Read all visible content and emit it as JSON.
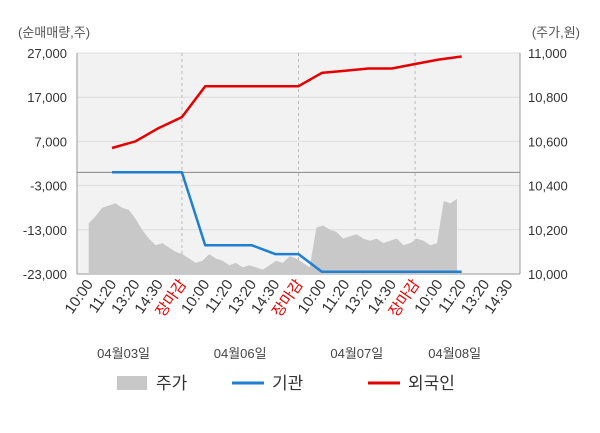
{
  "chart_data": {
    "type": "line",
    "y_left_unit": "(순매매량,주)",
    "y_right_unit": "(주가,원)",
    "y_left_ticks": [
      "27,000",
      "17,000",
      "7,000",
      "-3,000",
      "-13,000",
      "-23,000"
    ],
    "y_left_range": [
      -23000,
      27000
    ],
    "y_right_ticks": [
      "11,000",
      "10,800",
      "10,600",
      "10,400",
      "10,200",
      "10,000"
    ],
    "y_right_range": [
      10000,
      11000
    ],
    "x_tick_labels": [
      "10:00",
      "11:20",
      "13:20",
      "14:30",
      "장마감",
      "10:00",
      "11:20",
      "13:20",
      "14:30",
      "장마감",
      "10:00",
      "11:20",
      "13:20",
      "14:30",
      "장마감",
      "10:00",
      "11:20",
      "13:20",
      "14:30"
    ],
    "x_tick_highlight": [
      false,
      false,
      false,
      false,
      true,
      false,
      false,
      false,
      false,
      true,
      false,
      false,
      false,
      false,
      true,
      false,
      false,
      false,
      false
    ],
    "date_labels": [
      "04월03일",
      "04월06일",
      "04월07일",
      "04월08일"
    ],
    "legend": [
      "주가",
      "기관",
      "외국인"
    ],
    "colors": {
      "price": "#c8c8c8",
      "institution": "#1f7fd1",
      "foreign": "#e50000",
      "grid": "#dddddd",
      "plot_bg": "#f2f2f2"
    },
    "series": [
      {
        "key": "foreign",
        "x": [
          1,
          2,
          3,
          4,
          5,
          6,
          7,
          8,
          9,
          10,
          11,
          12,
          13,
          14,
          15,
          16
        ],
        "values": [
          5500,
          7000,
          10000,
          12500,
          19500,
          19500,
          19500,
          19500,
          19500,
          22500,
          23000,
          23500,
          23500,
          24500,
          25500,
          26200
        ]
      },
      {
        "key": "institution",
        "x": [
          1,
          2,
          3,
          4,
          5,
          6,
          7,
          8,
          9,
          10,
          11,
          12,
          13,
          14,
          15,
          16
        ],
        "values": [
          0,
          0,
          0,
          0,
          -16500,
          -16500,
          -16500,
          -18500,
          -18500,
          -22500,
          -22500,
          -22500,
          -22500,
          -22500,
          -22500,
          -22500
        ]
      }
    ],
    "price": {
      "x_start": 0,
      "x_end": 15.8,
      "values": [
        10230,
        10260,
        10300,
        10310,
        10320,
        10300,
        10290,
        10250,
        10200,
        10160,
        10130,
        10140,
        10120,
        10100,
        10090,
        10070,
        10050,
        10060,
        10090,
        10070,
        10060,
        10040,
        10050,
        10030,
        10040,
        10030,
        10020,
        10040,
        10060,
        10050,
        10080,
        10070,
        10050,
        10030,
        10210,
        10220,
        10200,
        10190,
        10160,
        10170,
        10180,
        10160,
        10150,
        10160,
        10140,
        10150,
        10160,
        10130,
        10140,
        10160,
        10150,
        10130,
        10140,
        10330,
        10320,
        10340
      ]
    }
  }
}
